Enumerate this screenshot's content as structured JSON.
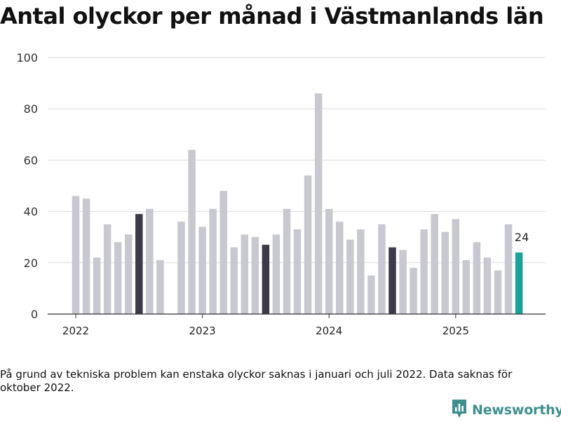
{
  "chart_data": {
    "type": "bar",
    "title": "Antal olyckor per månad i Västmanlands län",
    "xlabel": "",
    "ylabel": "",
    "ylim": [
      0,
      100
    ],
    "yticks": [
      "0",
      "20",
      "40",
      "60",
      "80",
      "100"
    ],
    "xtick_labels": [
      {
        "label": "2022",
        "category": "2022-01"
      },
      {
        "label": "2023",
        "category": "2023-01"
      },
      {
        "label": "2024",
        "category": "2024-01"
      },
      {
        "label": "2025",
        "category": "2025-01"
      }
    ],
    "grid": true,
    "categories": [
      "2022-01",
      "2022-02",
      "2022-03",
      "2022-04",
      "2022-05",
      "2022-06",
      "2022-07",
      "2022-08",
      "2022-09",
      "2022-10",
      "2022-11",
      "2022-12",
      "2023-01",
      "2023-02",
      "2023-03",
      "2023-04",
      "2023-05",
      "2023-06",
      "2023-07",
      "2023-08",
      "2023-09",
      "2023-10",
      "2023-11",
      "2023-12",
      "2024-01",
      "2024-02",
      "2024-03",
      "2024-04",
      "2024-05",
      "2024-06",
      "2024-07",
      "2024-08",
      "2024-09",
      "2024-10",
      "2024-11",
      "2024-12",
      "2025-01",
      "2025-02",
      "2025-03",
      "2025-04",
      "2025-05",
      "2025-06",
      "2025-07"
    ],
    "values": [
      46,
      45,
      22,
      35,
      28,
      31,
      39,
      41,
      21,
      null,
      36,
      64,
      34,
      41,
      48,
      26,
      31,
      30,
      27,
      31,
      41,
      33,
      54,
      86,
      41,
      36,
      29,
      33,
      15,
      35,
      26,
      25,
      18,
      33,
      39,
      32,
      37,
      21,
      28,
      22,
      17,
      35,
      24
    ],
    "highlighted_dark": [
      "2022-07",
      "2023-07",
      "2024-07"
    ],
    "highlighted_current": "2025-07",
    "data_labels": [
      {
        "category": "2025-07",
        "text": "24"
      }
    ],
    "colors": {
      "bar": "#c8c8d0",
      "bar_dark": "#3c3a46",
      "bar_current": "#17a398",
      "grid": "#dcdcdc",
      "axis": "#333333"
    }
  },
  "footnote": "På grund av tekniska problem kan enstaka olyckor saknas i januari och juli 2022. Data saknas för oktober 2022.",
  "brand": {
    "name": "Newsworthy",
    "color": "#3f8f8f"
  }
}
